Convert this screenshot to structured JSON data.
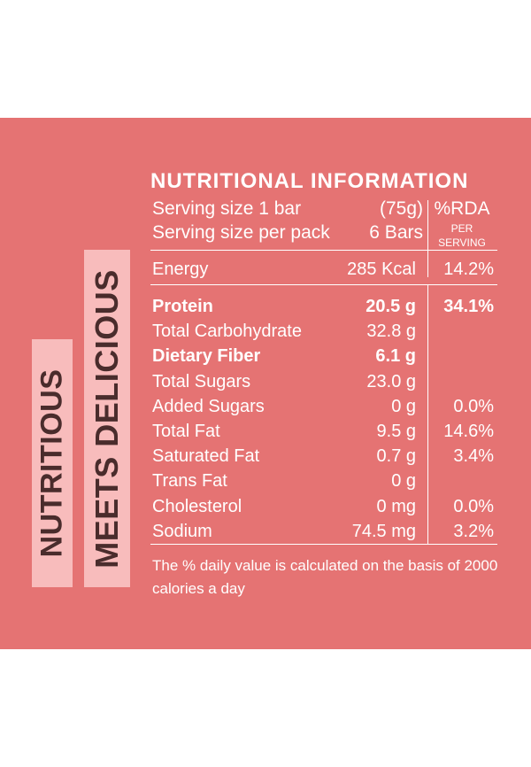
{
  "colors": {
    "panel": "#e57373",
    "tag": "#f8bcbc",
    "tag_text": "#4a2c2c",
    "text": "#ffffff"
  },
  "side_tags": {
    "tag1": "NUTRITIOUS",
    "tag2": "MEETS DELICIOUS"
  },
  "facts": {
    "title": "NUTRITIONAL INFORMATION",
    "serving": {
      "row1_label": "Serving size 1 bar",
      "row1_value": "(75g)",
      "row2_label": "Serving size per pack",
      "row2_value": "6 Bars"
    },
    "rda_header": {
      "main": "%RDA",
      "sub": "PER SERVING"
    },
    "energy": {
      "label": "Energy",
      "value": "285 Kcal",
      "rda": "14.2%"
    },
    "rows": [
      {
        "label": "Protein",
        "value": "20.5 g",
        "rda": "34.1%",
        "bold": true
      },
      {
        "label": "Total Carbohydrate",
        "value": "32.8 g",
        "rda": "",
        "bold": false
      },
      {
        "label": "Dietary Fiber",
        "value": "6.1 g",
        "rda": "",
        "bold": true
      },
      {
        "label": "Total Sugars",
        "value": "23.0 g",
        "rda": "",
        "bold": false
      },
      {
        "label": "Added Sugars",
        "value": "0 g",
        "rda": "0.0%",
        "bold": false
      },
      {
        "label": "Total Fat",
        "value": "9.5 g",
        "rda": "14.6%",
        "bold": false
      },
      {
        "label": "Saturated Fat",
        "value": "0.7 g",
        "rda": "3.4%",
        "bold": false
      },
      {
        "label": "Trans Fat",
        "value": "0 g",
        "rda": "",
        "bold": false
      },
      {
        "label": "Cholesterol",
        "value": "0 mg",
        "rda": "0.0%",
        "bold": false
      },
      {
        "label": "Sodium",
        "value": "74.5 mg",
        "rda": "3.2%",
        "bold": false
      }
    ],
    "footnote": "The % daily value is calculated on the basis of 2000 calories a day"
  }
}
